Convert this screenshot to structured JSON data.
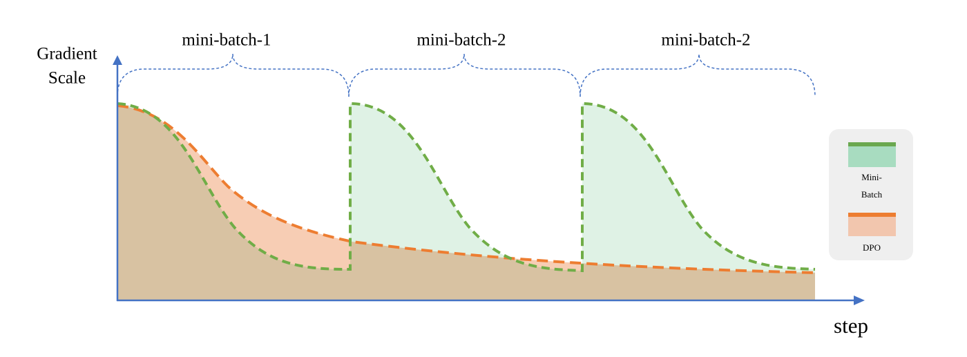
{
  "axes": {
    "y_label": [
      "Gradient",
      "Scale"
    ],
    "x_label": "step"
  },
  "braces": [
    "mini-batch-1",
    "mini-batch-2",
    "mini-batch-2"
  ],
  "legend": {
    "items": [
      {
        "label": [
          "Mini-",
          "Batch"
        ]
      },
      {
        "label": [
          "DPO"
        ]
      }
    ]
  }
}
